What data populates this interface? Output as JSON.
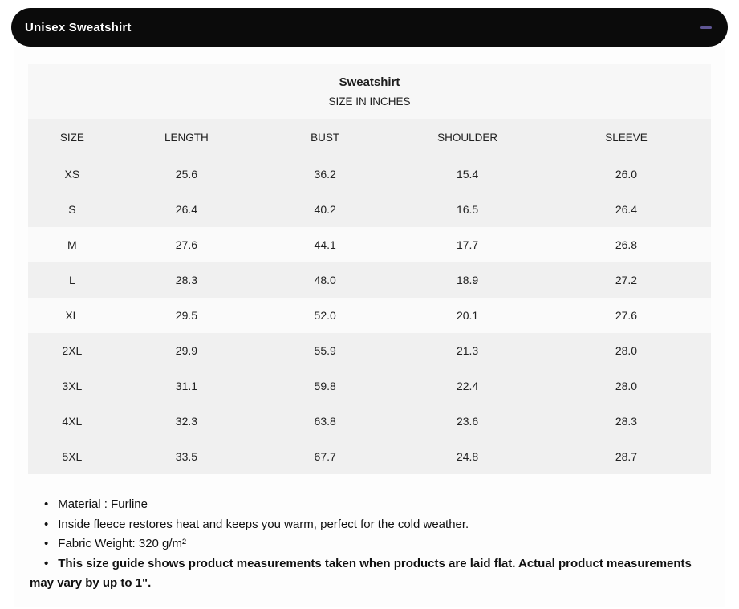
{
  "accordion": {
    "title": "Unisex Sweatshirt",
    "bar_color": "#0b0b0b",
    "collapse_icon": "minus-icon",
    "collapse_icon_color": "#5f5694",
    "state": "expanded"
  },
  "table": {
    "title": "Sweatshirt",
    "subtitle": "SIZE IN INCHES",
    "columns": [
      "SIZE",
      "LENGTH",
      "BUST",
      "SHOULDER",
      "SLEEVE"
    ],
    "rows": [
      {
        "size": "XS",
        "values": [
          "25.6",
          "36.2",
          "15.4",
          "26.0"
        ],
        "light": false
      },
      {
        "size": "S",
        "values": [
          "26.4",
          "40.2",
          "16.5",
          "26.4"
        ],
        "light": false
      },
      {
        "size": "M",
        "values": [
          "27.6",
          "44.1",
          "17.7",
          "26.8"
        ],
        "light": true
      },
      {
        "size": "L",
        "values": [
          "28.3",
          "48.0",
          "18.9",
          "27.2"
        ],
        "light": false
      },
      {
        "size": "XL",
        "values": [
          "29.5",
          "52.0",
          "20.1",
          "27.6"
        ],
        "light": true
      },
      {
        "size": "2XL",
        "values": [
          "29.9",
          "55.9",
          "21.3",
          "28.0"
        ],
        "light": false
      },
      {
        "size": "3XL",
        "values": [
          "31.1",
          "59.8",
          "22.4",
          "28.0"
        ],
        "light": false
      },
      {
        "size": "4XL",
        "values": [
          "32.3",
          "63.8",
          "23.6",
          "28.3"
        ],
        "light": false
      },
      {
        "size": "5XL",
        "values": [
          "33.5",
          "67.7",
          "24.8",
          "28.7"
        ],
        "light": false
      }
    ],
    "row_colors": {
      "default": "#f0f0f0",
      "light": "#fafafa",
      "caption": "#f7f7f7"
    }
  },
  "notes": [
    {
      "text": "Material : Furline",
      "bold": false
    },
    {
      "text": "Inside fleece restores heat and keeps you warm, perfect for the cold weather.",
      "bold": false
    },
    {
      "text": "Fabric Weight: 320 g/m²",
      "bold": false
    },
    {
      "text": "This size guide shows product measurements taken when products are laid flat. Actual product measurements may vary by up to 1\".",
      "bold": true
    }
  ]
}
